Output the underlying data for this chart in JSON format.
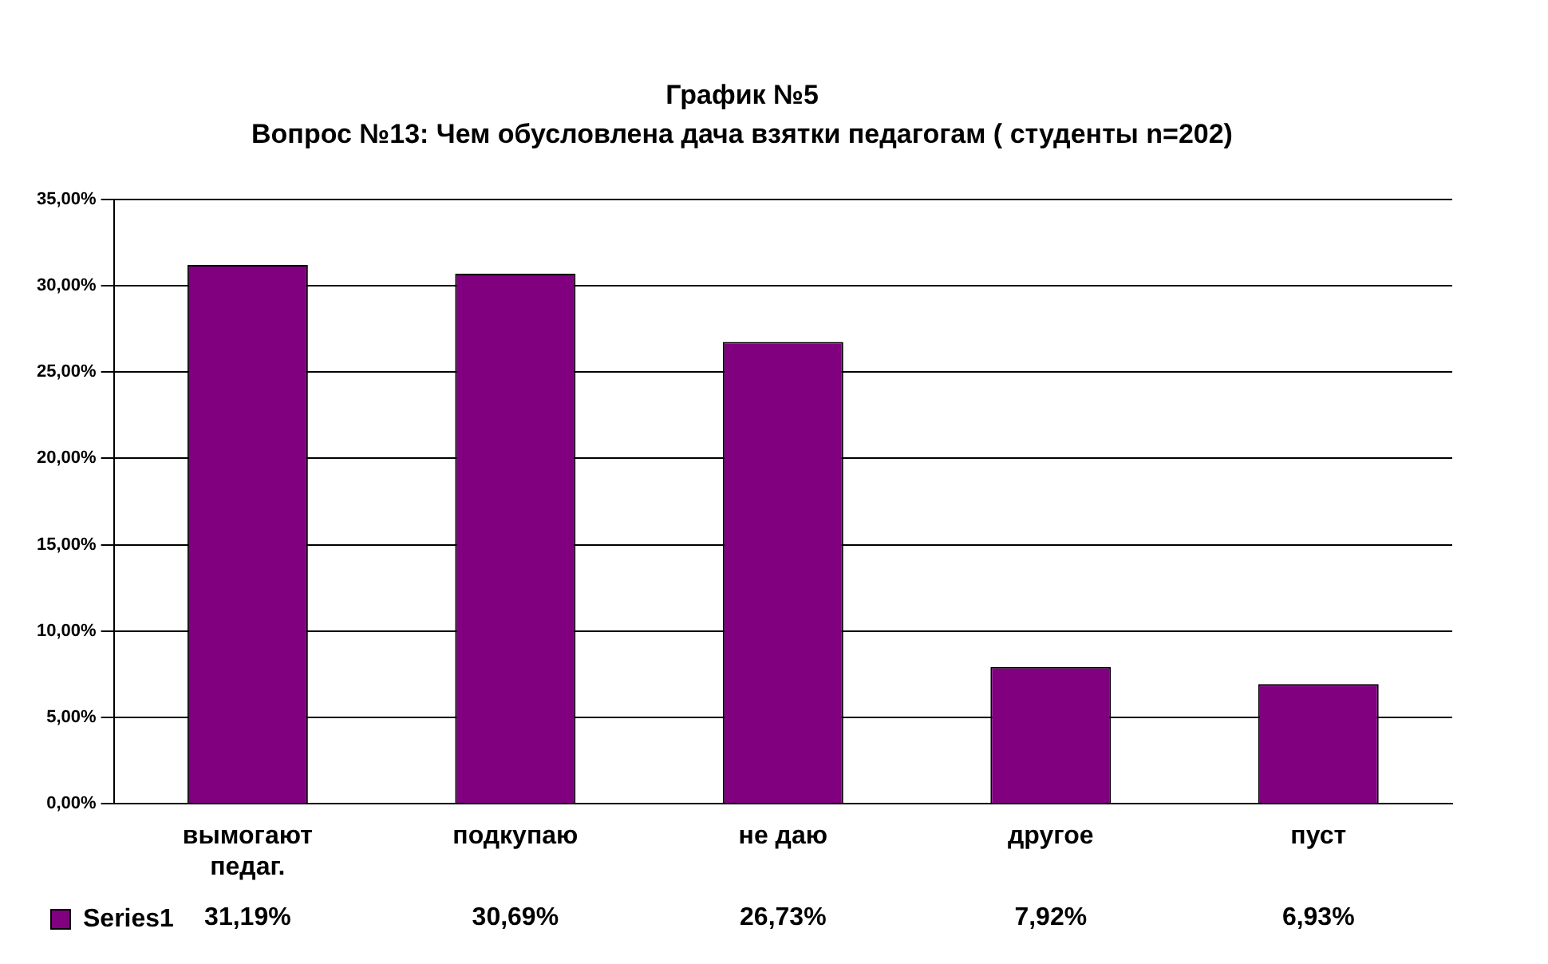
{
  "chart_data": {
    "type": "bar",
    "title": "График №5",
    "subtitle": "Вопрос №13: Чем обусловлена дача взятки педагогам ( студенты n=202)",
    "categories": [
      "вымогают педаг.",
      "подкупаю",
      "не даю",
      "другое",
      "пуст"
    ],
    "series": [
      {
        "name": "Series1",
        "color": "#800080",
        "values": [
          31.19,
          30.69,
          26.73,
          7.92,
          6.93
        ],
        "value_labels": [
          "31,19%",
          "30,69%",
          "26,73%",
          "7,92%",
          "6,93%"
        ]
      }
    ],
    "ylim": [
      0,
      35
    ],
    "yticks": [
      {
        "value": 0,
        "label": "0,00%"
      },
      {
        "value": 5,
        "label": "5,00%"
      },
      {
        "value": 10,
        "label": "10,00%"
      },
      {
        "value": 15,
        "label": "15,00%"
      },
      {
        "value": 20,
        "label": "20,00%"
      },
      {
        "value": 25,
        "label": "25,00%"
      },
      {
        "value": 30,
        "label": "30,00%"
      },
      {
        "value": 35,
        "label": "35,00%"
      }
    ],
    "grid": "y",
    "legend": "bottom left"
  }
}
